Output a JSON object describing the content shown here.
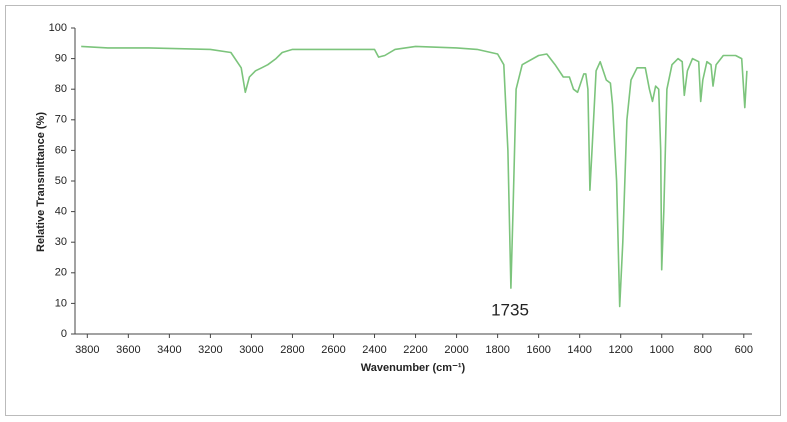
{
  "chart_data": {
    "type": "line",
    "xlabel": "Wavenumber (cm⁻¹)",
    "ylabel": "Relative Transmittance (%)",
    "annotation": "1735",
    "color": "#7cc47c",
    "xlim": [
      3860,
      560
    ],
    "xticks": [
      3800,
      3600,
      3400,
      3200,
      3000,
      2800,
      2600,
      2400,
      2200,
      2000,
      1800,
      1600,
      1400,
      1200,
      1000,
      800,
      600
    ],
    "ylim": [
      0,
      100
    ],
    "yticks": [
      0,
      10,
      20,
      30,
      40,
      50,
      60,
      70,
      80,
      90,
      100
    ],
    "x": [
      3830,
      3700,
      3500,
      3200,
      3100,
      3050,
      3030,
      3010,
      2980,
      2950,
      2920,
      2880,
      2850,
      2800,
      2600,
      2400,
      2380,
      2350,
      2300,
      2200,
      2000,
      1900,
      1800,
      1770,
      1750,
      1735,
      1725,
      1710,
      1680,
      1600,
      1560,
      1520,
      1480,
      1450,
      1430,
      1410,
      1380,
      1370,
      1360,
      1350,
      1340,
      1320,
      1300,
      1270,
      1250,
      1240,
      1220,
      1205,
      1190,
      1170,
      1150,
      1120,
      1080,
      1060,
      1045,
      1030,
      1015,
      1005,
      1000,
      990,
      975,
      950,
      920,
      900,
      890,
      875,
      850,
      820,
      810,
      800,
      780,
      760,
      750,
      735,
      700,
      640,
      610,
      595,
      585
    ],
    "values": [
      94,
      93.5,
      93.5,
      93,
      92,
      87,
      79,
      84,
      86,
      87,
      88,
      90,
      92,
      93,
      93,
      93,
      90.5,
      91,
      93,
      94,
      93.5,
      93,
      91.5,
      88,
      60,
      15,
      40,
      80,
      88,
      91,
      91.5,
      88,
      84,
      84,
      80,
      79,
      85,
      85,
      80,
      47,
      60,
      86,
      89,
      83,
      82,
      75,
      50,
      9,
      30,
      70,
      83,
      87,
      87,
      80,
      76,
      81,
      80,
      60,
      21,
      40,
      80,
      88,
      90,
      89,
      78,
      86,
      90,
      89,
      76,
      83,
      89,
      88,
      81,
      88,
      91,
      91,
      90,
      74,
      86
    ]
  }
}
